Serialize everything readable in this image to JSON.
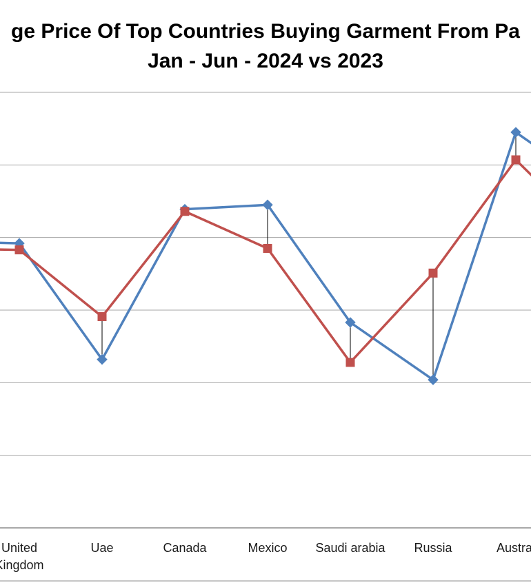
{
  "chart_data": {
    "type": "line",
    "title_line1": "ge Price Of Top Countries Buying Garment From Pa",
    "title_line2": "Jan - Jun - 2024 vs 2023",
    "categories": [
      "",
      "United Kingdom",
      "Uae",
      "Canada",
      "Mexico",
      "Saudi arabia",
      "Russia",
      "Austral",
      ""
    ],
    "category_lines": [
      [
        ""
      ],
      [
        "United",
        "Kingdom"
      ],
      [
        "Uae"
      ],
      [
        "Canada"
      ],
      [
        "Mexico"
      ],
      [
        "Saudi arabia"
      ],
      [
        "Russia"
      ],
      [
        "Austral"
      ],
      [
        ""
      ]
    ],
    "ylim": [
      0,
      6
    ],
    "grid": true,
    "series": [
      {
        "color": "#4F81BD",
        "marker": "diamond",
        "values": [
          3.95,
          3.92,
          2.32,
          4.39,
          4.45,
          2.83,
          2.04,
          5.45,
          4.65
        ]
      },
      {
        "color": "#C0504D",
        "marker": "square",
        "values": [
          3.85,
          3.83,
          2.91,
          4.36,
          3.85,
          2.28,
          3.51,
          5.07,
          3.95
        ]
      }
    ],
    "drop_lines": true
  }
}
